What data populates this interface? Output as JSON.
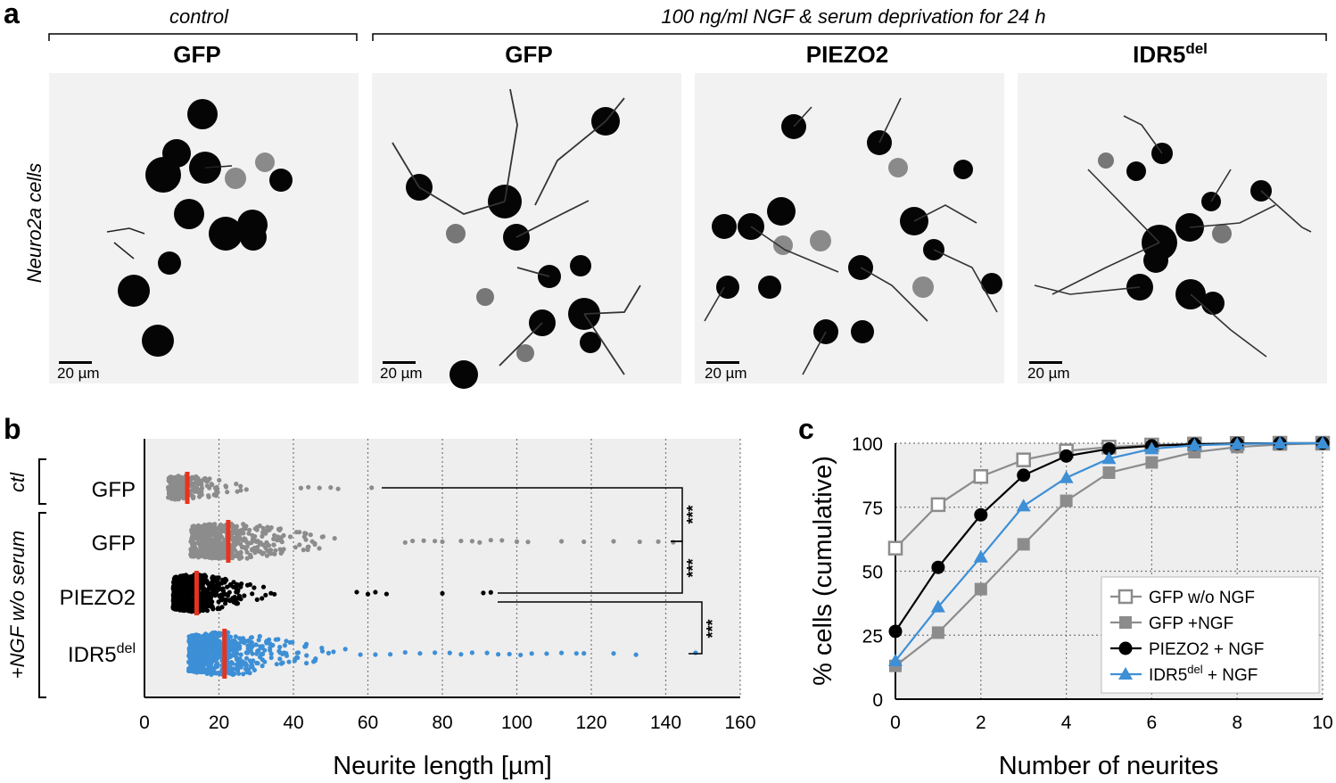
{
  "panel_a": {
    "letter": "a",
    "control_label": "control",
    "treatment_label": "100 ng/ml NGF & serum deprivation for 24 h",
    "row_label": "Neuro2a cells",
    "panels": [
      {
        "title": "GFP",
        "sup": "",
        "scale_label": "20 µm"
      },
      {
        "title": "GFP",
        "sup": "",
        "scale_label": "20 µm"
      },
      {
        "title": "PIEZO2",
        "sup": "",
        "scale_label": "20 µm"
      },
      {
        "title": "IDR5",
        "sup": "del",
        "scale_label": "20 µm"
      }
    ]
  },
  "colors": {
    "gray": "#8c8c8c",
    "black": "#000000",
    "blue": "#3d8fd6",
    "red": "#e8321e",
    "plot_bg": "#eeeeee"
  },
  "chart_data": [
    {
      "panel": "b",
      "type": "scatter",
      "letter": "b",
      "xlabel": "Neurite length [µm]",
      "xlim": [
        0,
        160
      ],
      "xticks": [
        0,
        20,
        40,
        60,
        80,
        100,
        120,
        140,
        160
      ],
      "xtick_labels": [
        "0",
        "20",
        "40",
        "60",
        "80",
        "100",
        "120",
        "140",
        "160"
      ],
      "group_ctl_label": "ctl",
      "group_ngf_label": "+NGF w/o serum",
      "significance": "***",
      "series": [
        {
          "name": "GFP",
          "sup": "",
          "group": "ctl",
          "color": "#8c8c8c",
          "median": 11.5,
          "max": 61,
          "outliers": [
            42,
            44,
            47,
            50,
            52,
            61
          ],
          "count": 260
        },
        {
          "name": "GFP",
          "sup": "",
          "group": "ngf",
          "color": "#8c8c8c",
          "median": 22.5,
          "max": 142,
          "outliers": [
            70,
            72,
            75,
            78,
            80,
            85,
            88,
            90,
            93,
            96,
            100,
            103,
            112,
            118,
            126,
            133,
            138,
            142
          ],
          "count": 520
        },
        {
          "name": "PIEZO2",
          "sup": "",
          "group": "ngf",
          "color": "#000000",
          "median": 14,
          "max": 93,
          "outliers": [
            57,
            60,
            62,
            65,
            80,
            91,
            93
          ],
          "count": 680
        },
        {
          "name": "IDR5",
          "sup": "del",
          "group": "ngf",
          "color": "#3d8fd6",
          "median": 21.5,
          "max": 148,
          "outliers": [
            58,
            62,
            66,
            70,
            74,
            78,
            82,
            85,
            88,
            92,
            95,
            98,
            101,
            104,
            108,
            112,
            116,
            118,
            126,
            132,
            148
          ],
          "count": 620
        }
      ]
    },
    {
      "panel": "c",
      "type": "line",
      "letter": "c",
      "xlabel": "Number of neurites",
      "ylabel": "% cells (cumulative)",
      "xlim": [
        0,
        10
      ],
      "ylim": [
        0,
        100
      ],
      "xticks": [
        0,
        2,
        4,
        6,
        8,
        10
      ],
      "yticks": [
        0,
        25,
        50,
        75,
        100
      ],
      "x": [
        0,
        1,
        2,
        3,
        4,
        5,
        6,
        7,
        8,
        9,
        10
      ],
      "series": [
        {
          "name": "GFP w/o NGF",
          "sup": "",
          "name_after": "",
          "color": "#8c8c8c",
          "marker": "open-square",
          "values": [
            59,
            76,
            87,
            93.5,
            97,
            98.5,
            99.3,
            99.7,
            99.9,
            100,
            100
          ]
        },
        {
          "name": "GFP +NGF",
          "sup": "",
          "name_after": "",
          "color": "#8c8c8c",
          "marker": "square",
          "values": [
            13,
            26,
            43,
            60.5,
            77.5,
            88.5,
            92.5,
            96.5,
            98.5,
            99.5,
            100
          ]
        },
        {
          "name": "PIEZO2 + NGF",
          "sup": "",
          "name_after": "",
          "color": "#000000",
          "marker": "circle",
          "values": [
            26.5,
            51.5,
            72,
            87.5,
            95,
            97.8,
            99,
            99.6,
            99.9,
            100,
            100
          ]
        },
        {
          "name": "IDR5",
          "sup": "del",
          "name_after": " + NGF",
          "color": "#3d8fd6",
          "marker": "triangle",
          "values": [
            15,
            36,
            55.5,
            75.5,
            86.5,
            94,
            97.8,
            99.2,
            99.7,
            100,
            100
          ]
        }
      ]
    }
  ]
}
